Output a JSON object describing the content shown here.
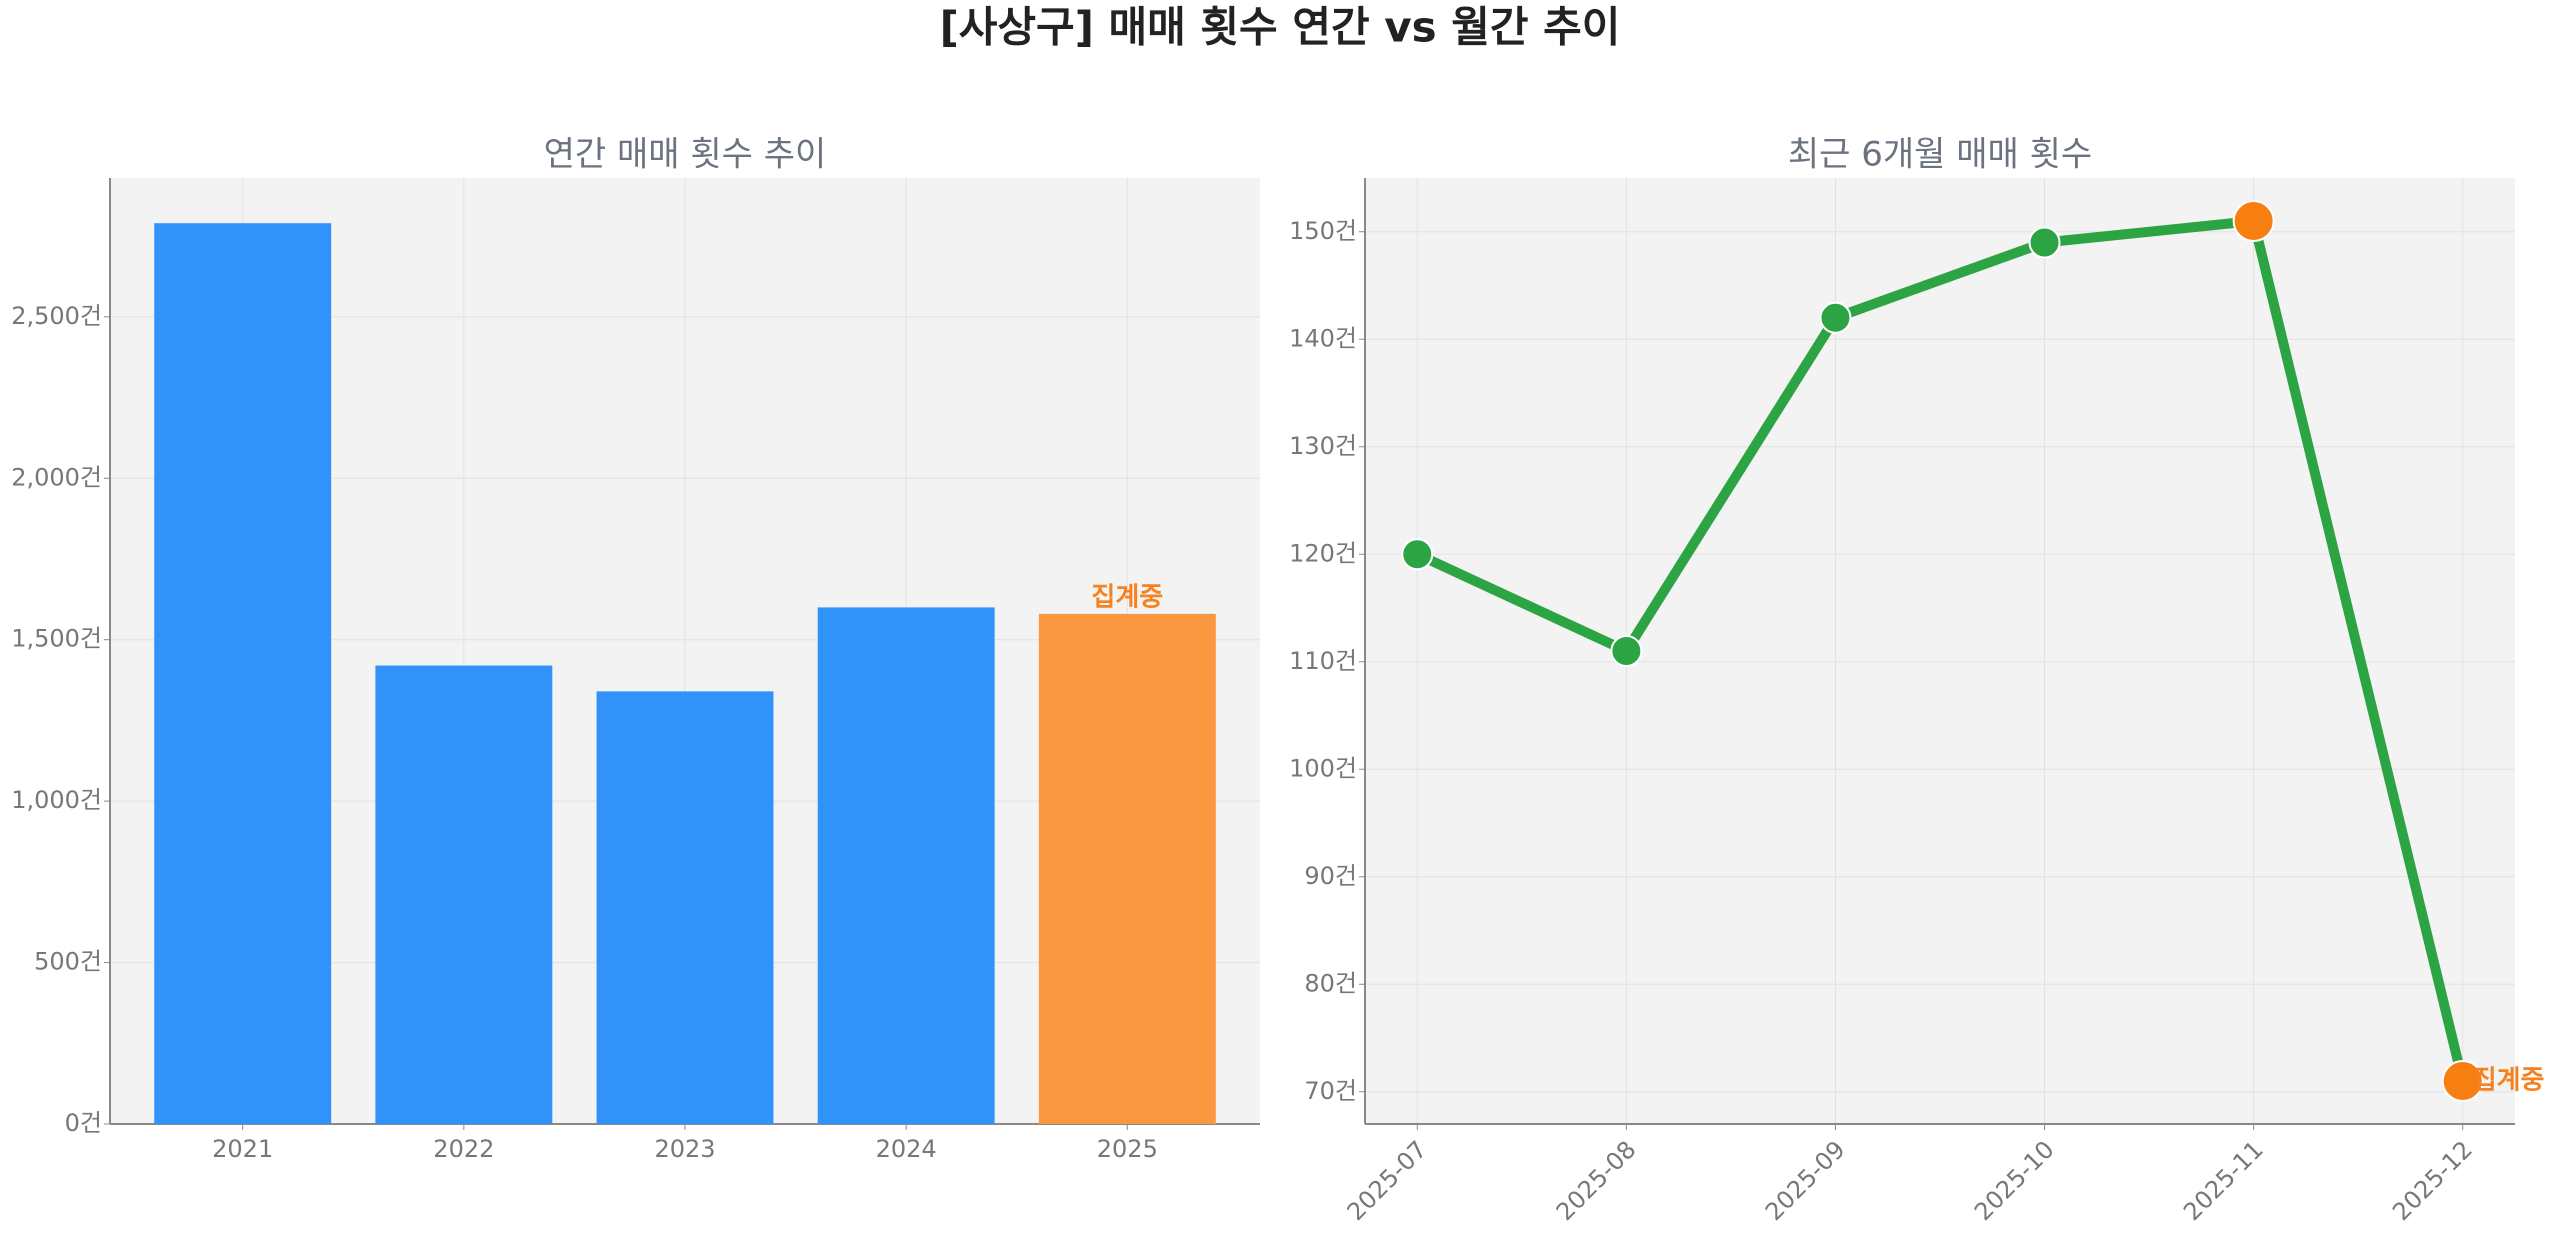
{
  "title": "[사상구] 매매 횟수 연간 vs 월간 추이",
  "chart_data": [
    {
      "type": "bar",
      "title": "연간 매매 횟수 추이",
      "categories": [
        "2021",
        "2022",
        "2023",
        "2024",
        "2025"
      ],
      "values": [
        2790,
        1420,
        1340,
        1600,
        1580
      ],
      "colors": [
        "#3193f9",
        "#3193f9",
        "#3193f9",
        "#3193f9",
        "#f99841"
      ],
      "ylim": [
        0,
        2930
      ],
      "yticks": [
        {
          "value": 0,
          "label": "0건"
        },
        {
          "value": 500,
          "label": "500건"
        },
        {
          "value": 1000,
          "label": "1,000건"
        },
        {
          "value": 1500,
          "label": "1,500건"
        },
        {
          "value": 2000,
          "label": "2,000건"
        },
        {
          "value": 2500,
          "label": "2,500건"
        }
      ],
      "grid": true,
      "annotations": [
        {
          "text": "집계중",
          "category": "2025",
          "color": "#f5821f"
        }
      ]
    },
    {
      "type": "line",
      "title": "최근 6개월 매매 횟수",
      "categories": [
        "2025-07",
        "2025-08",
        "2025-09",
        "2025-10",
        "2025-11",
        "2025-12"
      ],
      "values": [
        120,
        111,
        142,
        149,
        151,
        71
      ],
      "color": "#2ca444",
      "marker_colors": [
        "#2ca444",
        "#2ca444",
        "#2ca444",
        "#2ca444",
        "#f77f12",
        "#f77f12"
      ],
      "ylim": [
        67,
        155
      ],
      "yticks": [
        {
          "value": 70,
          "label": "70건"
        },
        {
          "value": 80,
          "label": "80건"
        },
        {
          "value": 90,
          "label": "90건"
        },
        {
          "value": 100,
          "label": "100건"
        },
        {
          "value": 110,
          "label": "110건"
        },
        {
          "value": 120,
          "label": "120건"
        },
        {
          "value": 130,
          "label": "130건"
        },
        {
          "value": 140,
          "label": "140건"
        },
        {
          "value": 150,
          "label": "150건"
        }
      ],
      "grid": true,
      "annotations": [
        {
          "text": "집계중",
          "category": "2025-12",
          "color": "#f5821f"
        }
      ]
    }
  ]
}
